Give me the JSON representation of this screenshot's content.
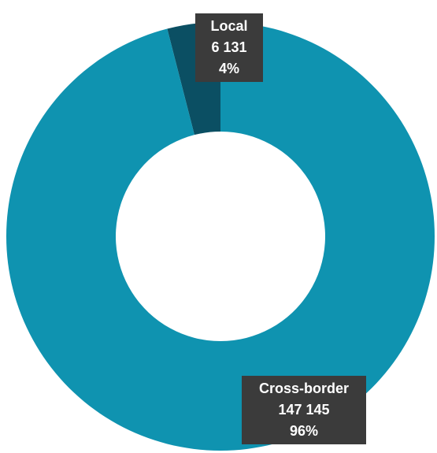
{
  "chart_data": {
    "type": "pie",
    "donut": true,
    "title": "",
    "slices": [
      {
        "label": "Local",
        "value": 6131,
        "value_text": "6 131",
        "percent_text": "4%",
        "color": "#0b4f63"
      },
      {
        "label": "Cross-border",
        "value": 147145,
        "value_text": "147 145",
        "percent_text": "96%",
        "color": "#0f93b0"
      }
    ],
    "legend": "none",
    "label_style": "dark callout boxes"
  }
}
